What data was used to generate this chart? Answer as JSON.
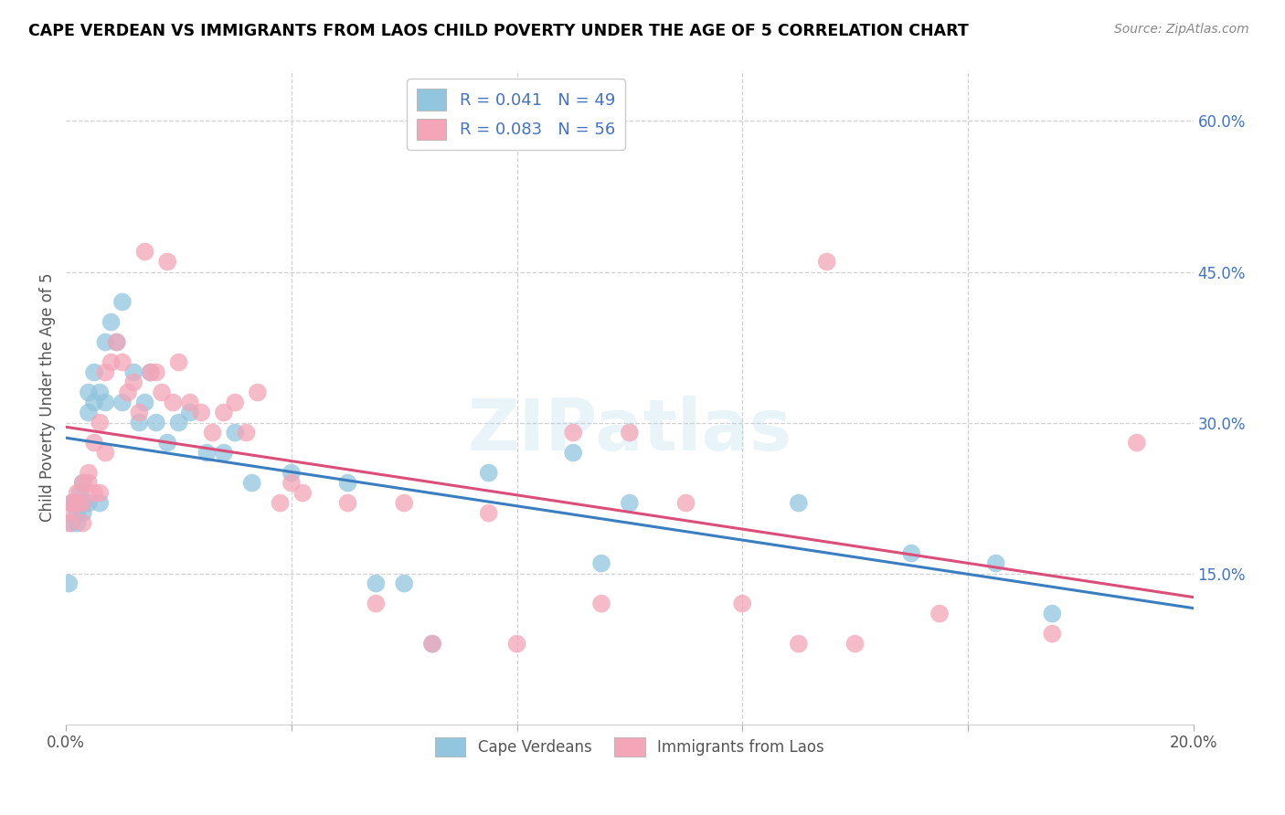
{
  "title": "CAPE VERDEAN VS IMMIGRANTS FROM LAOS CHILD POVERTY UNDER THE AGE OF 5 CORRELATION CHART",
  "source": "Source: ZipAtlas.com",
  "ylabel": "Child Poverty Under the Age of 5",
  "xlim": [
    0.0,
    0.2
  ],
  "ylim": [
    0.0,
    0.65
  ],
  "x_ticks": [
    0.0,
    0.04,
    0.08,
    0.12,
    0.16,
    0.2
  ],
  "x_tick_labels": [
    "0.0%",
    "",
    "",
    "",
    "",
    "20.0%"
  ],
  "y_ticks_right": [
    0.0,
    0.15,
    0.3,
    0.45,
    0.6
  ],
  "y_tick_labels_right": [
    "",
    "15.0%",
    "30.0%",
    "45.0%",
    "60.0%"
  ],
  "R1": "0.041",
  "N1": "49",
  "R2": "0.083",
  "N2": "56",
  "blue_scatter_color": "#92c5de",
  "pink_scatter_color": "#f4a5b8",
  "blue_line_color": "#3a7ebf",
  "pink_line_color": "#d94f7a",
  "text_blue_color": "#4472c4",
  "watermark_text": "ZIPatlas",
  "legend_label1": "Cape Verdeans",
  "legend_label2": "Immigrants from Laos",
  "blue_scatter_x": [
    0.0005,
    0.001,
    0.001,
    0.0015,
    0.002,
    0.002,
    0.002,
    0.0025,
    0.003,
    0.003,
    0.003,
    0.004,
    0.004,
    0.004,
    0.005,
    0.005,
    0.006,
    0.006,
    0.007,
    0.007,
    0.008,
    0.009,
    0.01,
    0.01,
    0.012,
    0.013,
    0.014,
    0.015,
    0.016,
    0.018,
    0.02,
    0.022,
    0.025,
    0.028,
    0.03,
    0.033,
    0.04,
    0.05,
    0.055,
    0.06,
    0.065,
    0.075,
    0.09,
    0.095,
    0.1,
    0.13,
    0.15,
    0.165,
    0.175
  ],
  "blue_scatter_y": [
    0.14,
    0.22,
    0.2,
    0.22,
    0.21,
    0.22,
    0.2,
    0.23,
    0.24,
    0.21,
    0.22,
    0.31,
    0.33,
    0.22,
    0.32,
    0.35,
    0.33,
    0.22,
    0.38,
    0.32,
    0.4,
    0.38,
    0.32,
    0.42,
    0.35,
    0.3,
    0.32,
    0.35,
    0.3,
    0.28,
    0.3,
    0.31,
    0.27,
    0.27,
    0.29,
    0.24,
    0.25,
    0.24,
    0.14,
    0.14,
    0.08,
    0.25,
    0.27,
    0.16,
    0.22,
    0.22,
    0.17,
    0.16,
    0.11
  ],
  "pink_scatter_x": [
    0.0005,
    0.001,
    0.001,
    0.002,
    0.002,
    0.003,
    0.003,
    0.003,
    0.004,
    0.004,
    0.005,
    0.005,
    0.006,
    0.006,
    0.007,
    0.007,
    0.008,
    0.009,
    0.01,
    0.011,
    0.012,
    0.013,
    0.014,
    0.015,
    0.016,
    0.017,
    0.018,
    0.019,
    0.02,
    0.022,
    0.024,
    0.026,
    0.028,
    0.03,
    0.032,
    0.034,
    0.038,
    0.04,
    0.042,
    0.05,
    0.055,
    0.06,
    0.065,
    0.075,
    0.08,
    0.09,
    0.095,
    0.1,
    0.11,
    0.12,
    0.13,
    0.135,
    0.14,
    0.155,
    0.175,
    0.19
  ],
  "pink_scatter_y": [
    0.2,
    0.21,
    0.22,
    0.22,
    0.23,
    0.24,
    0.22,
    0.2,
    0.25,
    0.24,
    0.28,
    0.23,
    0.3,
    0.23,
    0.35,
    0.27,
    0.36,
    0.38,
    0.36,
    0.33,
    0.34,
    0.31,
    0.47,
    0.35,
    0.35,
    0.33,
    0.46,
    0.32,
    0.36,
    0.32,
    0.31,
    0.29,
    0.31,
    0.32,
    0.29,
    0.33,
    0.22,
    0.24,
    0.23,
    0.22,
    0.12,
    0.22,
    0.08,
    0.21,
    0.08,
    0.29,
    0.12,
    0.29,
    0.22,
    0.12,
    0.08,
    0.46,
    0.08,
    0.11,
    0.09,
    0.28
  ]
}
